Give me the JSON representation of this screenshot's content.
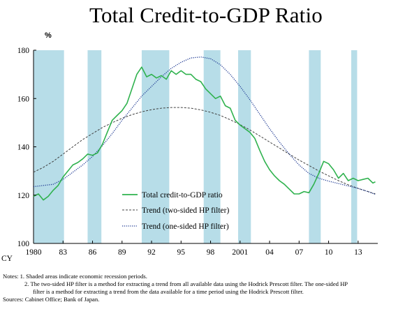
{
  "title": "Total Credit-to-GDP Ratio",
  "unit_label": "%",
  "notes": {
    "line1": "Notes: 1. Shaded areas indicate economic recession periods.",
    "line2": "2. The two-sided HP filter is a method for extracting a trend from all available data using the Hodrick Prescott filter. The one-sided HP",
    "line3": "filter is a method for extracting a trend from the data available for a time period using the Hodrick Prescott filter.",
    "line4": "Sources: Cabinet Office; Bank of Japan."
  },
  "colors": {
    "shade": "#b7dde8",
    "actual": "#2fb24e",
    "two_sided": "#404040",
    "one_sided": "#1f3a93"
  },
  "chart_data": {
    "type": "line",
    "xlabel": "CY",
    "ylabel": "%",
    "xlim": [
      1980.0,
      2015.0
    ],
    "ylim": [
      100,
      180
    ],
    "yticks": [
      100,
      120,
      140,
      160,
      180
    ],
    "xticks": [
      {
        "value": 1980,
        "label": "1980"
      },
      {
        "value": 1983,
        "label": "83"
      },
      {
        "value": 1986,
        "label": "86"
      },
      {
        "value": 1989,
        "label": "89"
      },
      {
        "value": 1992,
        "label": "92"
      },
      {
        "value": 1995,
        "label": "95"
      },
      {
        "value": 1998,
        "label": "98"
      },
      {
        "value": 2001,
        "label": "2001"
      },
      {
        "value": 2004,
        "label": "04"
      },
      {
        "value": 2007,
        "label": "07"
      },
      {
        "value": 2010,
        "label": "10"
      },
      {
        "value": 2013,
        "label": "13"
      }
    ],
    "recessions": [
      [
        1980.0,
        1983.1
      ],
      [
        1985.5,
        1986.9
      ],
      [
        1991.0,
        1993.8
      ],
      [
        1997.3,
        1999.0
      ],
      [
        2000.8,
        2002.1
      ],
      [
        2008.0,
        2009.2
      ],
      [
        2012.3,
        2012.9
      ]
    ],
    "legend_position": "bottom-center",
    "series": [
      {
        "name": "Total credit-to-GDP ratio",
        "style": "solid",
        "points": [
          [
            1980.0,
            119.5
          ],
          [
            1980.5,
            120.5
          ],
          [
            1981.0,
            118.0
          ],
          [
            1981.5,
            119.5
          ],
          [
            1982.0,
            122.0
          ],
          [
            1982.5,
            124.0
          ],
          [
            1983.0,
            127.5
          ],
          [
            1983.5,
            130.0
          ],
          [
            1984.0,
            132.5
          ],
          [
            1984.5,
            133.5
          ],
          [
            1985.0,
            135.0
          ],
          [
            1985.5,
            137.0
          ],
          [
            1986.0,
            136.5
          ],
          [
            1986.5,
            137.5
          ],
          [
            1987.0,
            141.0
          ],
          [
            1987.5,
            146.0
          ],
          [
            1988.0,
            151.0
          ],
          [
            1988.5,
            153.0
          ],
          [
            1989.0,
            155.0
          ],
          [
            1989.5,
            158.0
          ],
          [
            1990.0,
            164.0
          ],
          [
            1990.5,
            170.0
          ],
          [
            1991.0,
            173.0
          ],
          [
            1991.5,
            169.0
          ],
          [
            1992.0,
            170.0
          ],
          [
            1992.5,
            168.5
          ],
          [
            1993.0,
            169.5
          ],
          [
            1993.5,
            168.0
          ],
          [
            1994.0,
            171.5
          ],
          [
            1994.5,
            170.0
          ],
          [
            1995.0,
            171.5
          ],
          [
            1995.5,
            170.0
          ],
          [
            1996.0,
            170.0
          ],
          [
            1996.5,
            168.0
          ],
          [
            1997.0,
            167.0
          ],
          [
            1997.5,
            164.0
          ],
          [
            1998.0,
            162.0
          ],
          [
            1998.5,
            160.0
          ],
          [
            1999.0,
            161.0
          ],
          [
            1999.5,
            157.0
          ],
          [
            2000.0,
            156.0
          ],
          [
            2000.5,
            151.0
          ],
          [
            2001.0,
            149.0
          ],
          [
            2001.5,
            147.5
          ],
          [
            2002.0,
            146.0
          ],
          [
            2002.5,
            143.5
          ],
          [
            2003.0,
            138.5
          ],
          [
            2003.5,
            134.0
          ],
          [
            2004.0,
            130.5
          ],
          [
            2004.5,
            128.0
          ],
          [
            2005.0,
            126.0
          ],
          [
            2005.5,
            124.5
          ],
          [
            2006.0,
            122.5
          ],
          [
            2006.5,
            120.5
          ],
          [
            2007.0,
            120.5
          ],
          [
            2007.5,
            121.5
          ],
          [
            2008.0,
            121.0
          ],
          [
            2008.5,
            124.5
          ],
          [
            2009.0,
            129.0
          ],
          [
            2009.5,
            134.0
          ],
          [
            2010.0,
            133.0
          ],
          [
            2010.5,
            130.5
          ],
          [
            2011.0,
            127.0
          ],
          [
            2011.5,
            129.0
          ],
          [
            2012.0,
            126.0
          ],
          [
            2012.5,
            127.0
          ],
          [
            2013.0,
            126.0
          ],
          [
            2013.5,
            126.5
          ],
          [
            2014.0,
            127.0
          ],
          [
            2014.5,
            125.0
          ],
          [
            2014.75,
            125.5
          ]
        ]
      },
      {
        "name": "Trend (two-sided HP filter)",
        "style": "dashed",
        "points": [
          [
            1980.0,
            129.5
          ],
          [
            1981.0,
            131.5
          ],
          [
            1982.0,
            134.0
          ],
          [
            1983.0,
            137.0
          ],
          [
            1984.0,
            140.0
          ],
          [
            1985.0,
            143.0
          ],
          [
            1986.0,
            145.5
          ],
          [
            1987.0,
            148.0
          ],
          [
            1988.0,
            150.0
          ],
          [
            1989.0,
            151.8
          ],
          [
            1990.0,
            153.3
          ],
          [
            1991.0,
            154.5
          ],
          [
            1992.0,
            155.4
          ],
          [
            1993.0,
            156.0
          ],
          [
            1994.0,
            156.3
          ],
          [
            1995.0,
            156.3
          ],
          [
            1996.0,
            156.0
          ],
          [
            1997.0,
            155.3
          ],
          [
            1998.0,
            154.3
          ],
          [
            1999.0,
            153.0
          ],
          [
            2000.0,
            151.2
          ],
          [
            2001.0,
            149.2
          ],
          [
            2002.0,
            147.0
          ],
          [
            2003.0,
            144.5
          ],
          [
            2004.0,
            142.0
          ],
          [
            2005.0,
            139.5
          ],
          [
            2006.0,
            137.0
          ],
          [
            2007.0,
            134.5
          ],
          [
            2008.0,
            132.3
          ],
          [
            2009.0,
            130.0
          ],
          [
            2010.0,
            128.0
          ],
          [
            2011.0,
            126.0
          ],
          [
            2012.0,
            124.3
          ],
          [
            2013.0,
            122.8
          ],
          [
            2014.0,
            121.5
          ],
          [
            2014.75,
            120.5
          ]
        ]
      },
      {
        "name": "Trend (one-sided HP filter)",
        "style": "dotted",
        "points": [
          [
            1980.0,
            123.5
          ],
          [
            1981.0,
            124.0
          ],
          [
            1982.0,
            124.5
          ],
          [
            1983.0,
            126.5
          ],
          [
            1984.0,
            129.5
          ],
          [
            1985.0,
            132.5
          ],
          [
            1986.0,
            136.0
          ],
          [
            1987.0,
            140.5
          ],
          [
            1988.0,
            145.5
          ],
          [
            1989.0,
            151.0
          ],
          [
            1990.0,
            156.0
          ],
          [
            1991.0,
            161.0
          ],
          [
            1992.0,
            165.0
          ],
          [
            1993.0,
            169.0
          ],
          [
            1994.0,
            172.5
          ],
          [
            1995.0,
            175.0
          ],
          [
            1996.0,
            176.8
          ],
          [
            1997.0,
            177.2
          ],
          [
            1998.0,
            176.5
          ],
          [
            1999.0,
            174.0
          ],
          [
            2000.0,
            170.0
          ],
          [
            2001.0,
            165.0
          ],
          [
            2002.0,
            159.5
          ],
          [
            2003.0,
            153.5
          ],
          [
            2004.0,
            147.5
          ],
          [
            2005.0,
            142.0
          ],
          [
            2006.0,
            137.0
          ],
          [
            2007.0,
            132.5
          ],
          [
            2008.0,
            129.0
          ],
          [
            2009.0,
            127.0
          ],
          [
            2010.0,
            125.8
          ],
          [
            2011.0,
            124.8
          ],
          [
            2012.0,
            123.8
          ],
          [
            2013.0,
            122.8
          ],
          [
            2014.0,
            121.5
          ],
          [
            2014.75,
            120.3
          ]
        ]
      }
    ]
  }
}
